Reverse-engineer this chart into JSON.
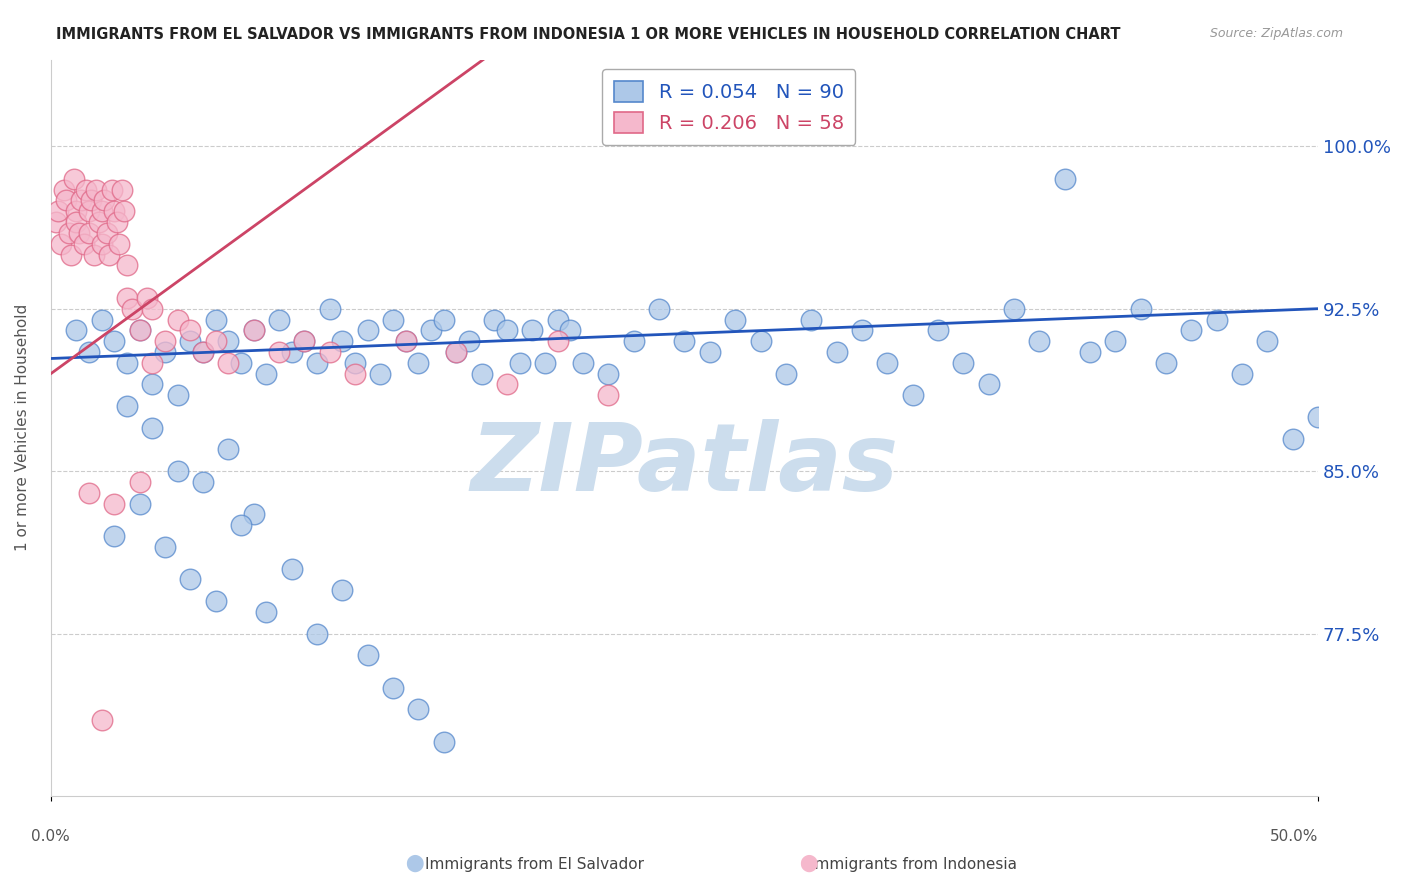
{
  "title": "IMMIGRANTS FROM EL SALVADOR VS IMMIGRANTS FROM INDONESIA 1 OR MORE VEHICLES IN HOUSEHOLD CORRELATION CHART",
  "source": "Source: ZipAtlas.com",
  "ylabel": "1 or more Vehicles in Household",
  "ytick_labels": [
    "100.0%",
    "92.5%",
    "85.0%",
    "77.5%"
  ],
  "ytick_values": [
    100.0,
    92.5,
    85.0,
    77.5
  ],
  "xlim": [
    0.0,
    50.0
  ],
  "ylim": [
    70.0,
    104.0
  ],
  "legend_blue_label": "Immigrants from El Salvador",
  "legend_pink_label": "Immigrants from Indonesia",
  "R_blue": 0.054,
  "N_blue": 90,
  "R_pink": 0.206,
  "N_pink": 58,
  "blue_color": "#adc8e8",
  "blue_edge": "#5588cc",
  "pink_color": "#f5b8cc",
  "pink_edge": "#e06888",
  "blue_line_color": "#2255bb",
  "pink_line_color": "#cc4466",
  "watermark": "ZIPatlas",
  "watermark_color": "#ccdded",
  "blue_line_x0": 0.0,
  "blue_line_y0": 90.2,
  "blue_line_x1": 50.0,
  "blue_line_y1": 92.5,
  "pink_line_x0": 0.0,
  "pink_line_y0": 89.5,
  "pink_line_x1": 10.0,
  "pink_line_y1": 98.0,
  "blue_x": [
    1.0,
    1.5,
    2.0,
    2.5,
    3.0,
    3.5,
    4.0,
    4.5,
    5.0,
    5.5,
    6.0,
    6.5,
    7.0,
    7.5,
    8.0,
    8.5,
    9.0,
    9.5,
    10.0,
    10.5,
    11.0,
    11.5,
    12.0,
    12.5,
    13.0,
    13.5,
    14.0,
    14.5,
    15.0,
    15.5,
    16.0,
    16.5,
    17.0,
    17.5,
    18.0,
    18.5,
    19.0,
    19.5,
    20.0,
    20.5,
    21.0,
    22.0,
    23.0,
    24.0,
    25.0,
    26.0,
    27.0,
    28.0,
    29.0,
    30.0,
    31.0,
    32.0,
    33.0,
    34.0,
    35.0,
    36.0,
    37.0,
    38.0,
    39.0,
    40.0,
    41.0,
    42.0,
    43.0,
    44.0,
    45.0,
    46.0,
    47.0,
    48.0,
    49.0,
    50.0,
    3.0,
    4.0,
    5.0,
    6.0,
    7.0,
    8.0,
    2.5,
    3.5,
    4.5,
    5.5,
    6.5,
    7.5,
    8.5,
    9.5,
    10.5,
    11.5,
    12.5,
    13.5,
    14.5,
    15.5
  ],
  "blue_y": [
    91.5,
    90.5,
    92.0,
    91.0,
    90.0,
    91.5,
    89.0,
    90.5,
    88.5,
    91.0,
    90.5,
    92.0,
    91.0,
    90.0,
    91.5,
    89.5,
    92.0,
    90.5,
    91.0,
    90.0,
    92.5,
    91.0,
    90.0,
    91.5,
    89.5,
    92.0,
    91.0,
    90.0,
    91.5,
    92.0,
    90.5,
    91.0,
    89.5,
    92.0,
    91.5,
    90.0,
    91.5,
    90.0,
    92.0,
    91.5,
    90.0,
    89.5,
    91.0,
    92.5,
    91.0,
    90.5,
    92.0,
    91.0,
    89.5,
    92.0,
    90.5,
    91.5,
    90.0,
    88.5,
    91.5,
    90.0,
    89.0,
    92.5,
    91.0,
    98.5,
    90.5,
    91.0,
    92.5,
    90.0,
    91.5,
    92.0,
    89.5,
    91.0,
    86.5,
    87.5,
    88.0,
    87.0,
    85.0,
    84.5,
    86.0,
    83.0,
    82.0,
    83.5,
    81.5,
    80.0,
    79.0,
    82.5,
    78.5,
    80.5,
    77.5,
    79.5,
    76.5,
    75.0,
    74.0,
    72.5
  ],
  "pink_x": [
    0.2,
    0.3,
    0.4,
    0.5,
    0.6,
    0.7,
    0.8,
    0.9,
    1.0,
    1.0,
    1.1,
    1.2,
    1.3,
    1.4,
    1.5,
    1.5,
    1.6,
    1.7,
    1.8,
    1.9,
    2.0,
    2.0,
    2.1,
    2.2,
    2.3,
    2.4,
    2.5,
    2.6,
    2.7,
    2.8,
    2.9,
    3.0,
    3.0,
    3.2,
    3.5,
    3.8,
    4.0,
    4.5,
    5.0,
    5.5,
    6.0,
    6.5,
    7.0,
    8.0,
    9.0,
    10.0,
    11.0,
    12.0,
    14.0,
    16.0,
    18.0,
    20.0,
    22.0,
    4.0,
    2.5,
    3.5,
    1.5,
    2.0
  ],
  "pink_y": [
    96.5,
    97.0,
    95.5,
    98.0,
    97.5,
    96.0,
    95.0,
    98.5,
    97.0,
    96.5,
    96.0,
    97.5,
    95.5,
    98.0,
    97.0,
    96.0,
    97.5,
    95.0,
    98.0,
    96.5,
    97.0,
    95.5,
    97.5,
    96.0,
    95.0,
    98.0,
    97.0,
    96.5,
    95.5,
    98.0,
    97.0,
    94.5,
    93.0,
    92.5,
    91.5,
    93.0,
    92.5,
    91.0,
    92.0,
    91.5,
    90.5,
    91.0,
    90.0,
    91.5,
    90.5,
    91.0,
    90.5,
    89.5,
    91.0,
    90.5,
    89.0,
    91.0,
    88.5,
    90.0,
    83.5,
    84.5,
    84.0,
    73.5
  ]
}
